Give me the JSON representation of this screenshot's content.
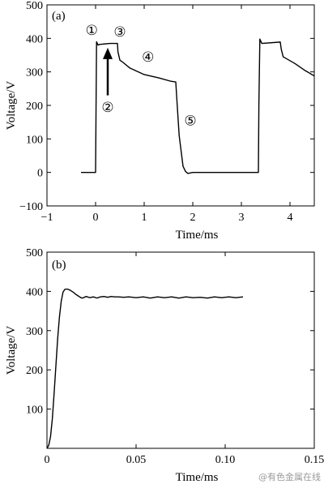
{
  "chart_data": [
    {
      "type": "line",
      "panel_label": "(a)",
      "xlabel": "Time/ms",
      "ylabel": "Voltage/V",
      "xlim": [
        -1,
        4.5
      ],
      "ylim": [
        -100,
        500
      ],
      "xticks": [
        -1,
        0,
        1,
        2,
        3,
        4
      ],
      "xtick_labels": [
        "−1",
        "0",
        "1",
        "2",
        "3",
        "4"
      ],
      "yticks": [
        -100,
        0,
        100,
        200,
        300,
        400,
        500
      ],
      "ytick_labels": [
        "−100",
        "0",
        "100",
        "200",
        "300",
        "400",
        "500"
      ],
      "grid": false,
      "series": [
        {
          "x": [
            -0.3,
            -0.05,
            0.0,
            0.01,
            0.02,
            0.05,
            0.08,
            0.3,
            0.45,
            0.46,
            0.5,
            0.55,
            0.7,
            1.0,
            1.3,
            1.55,
            1.65,
            1.68,
            1.72,
            1.8,
            1.85,
            1.9,
            2.0,
            3.0,
            3.35,
            3.36,
            3.38,
            3.42,
            3.8,
            3.82,
            3.86,
            4.1,
            4.3,
            4.5
          ],
          "y": [
            0,
            0,
            0,
            200,
            390,
            380,
            382,
            385,
            385,
            360,
            335,
            330,
            312,
            292,
            282,
            272,
            270,
            200,
            110,
            18,
            3,
            -3,
            0,
            0,
            0,
            200,
            398,
            385,
            389,
            368,
            345,
            325,
            305,
            288
          ]
        }
      ],
      "annotations": [
        {
          "text": "①",
          "x": -0.08,
          "y": 425
        },
        {
          "text": "②",
          "x": 0.25,
          "y": 195
        },
        {
          "text": "③",
          "x": 0.5,
          "y": 420
        },
        {
          "text": "④",
          "x": 1.08,
          "y": 345
        },
        {
          "text": "⑤",
          "x": 1.95,
          "y": 155
        }
      ],
      "arrow": {
        "x": 0.25,
        "y_from": 230,
        "y_to": 372
      }
    },
    {
      "type": "line",
      "panel_label": "(b)",
      "xlabel": "Time/ms",
      "ylabel": "Voltage/V",
      "xlim": [
        0,
        0.15
      ],
      "ylim": [
        0,
        500
      ],
      "xticks": [
        0,
        0.05,
        0.1,
        0.15
      ],
      "xtick_labels": [
        "0",
        "0.05",
        "0.10",
        "0.15"
      ],
      "yticks": [
        100,
        200,
        300,
        400,
        500
      ],
      "ytick_labels": [
        "100",
        "200",
        "300",
        "400",
        "500"
      ],
      "grid": false,
      "series": [
        {
          "x": [
            0.0,
            0.001,
            0.002,
            0.003,
            0.004,
            0.005,
            0.006,
            0.007,
            0.008,
            0.009,
            0.01,
            0.011,
            0.012,
            0.013,
            0.014,
            0.015,
            0.016,
            0.017,
            0.018,
            0.019,
            0.02,
            0.022,
            0.024,
            0.026,
            0.028,
            0.03,
            0.032,
            0.034,
            0.036,
            0.038,
            0.04,
            0.043,
            0.046,
            0.05,
            0.054,
            0.058,
            0.062,
            0.066,
            0.07,
            0.074,
            0.078,
            0.082,
            0.086,
            0.09,
            0.094,
            0.098,
            0.102,
            0.106,
            0.11
          ],
          "y": [
            0,
            8,
            30,
            75,
            140,
            210,
            280,
            335,
            375,
            398,
            405,
            406,
            405,
            403,
            400,
            397,
            393,
            390,
            387,
            384,
            383,
            387,
            384,
            386,
            383,
            386,
            387,
            385,
            387,
            386,
            386,
            385,
            386,
            384,
            386,
            383,
            386,
            384,
            386,
            383,
            386,
            384,
            385,
            383,
            386,
            384,
            386,
            384,
            386
          ]
        }
      ]
    }
  ],
  "watermark": "@有色金属在线"
}
